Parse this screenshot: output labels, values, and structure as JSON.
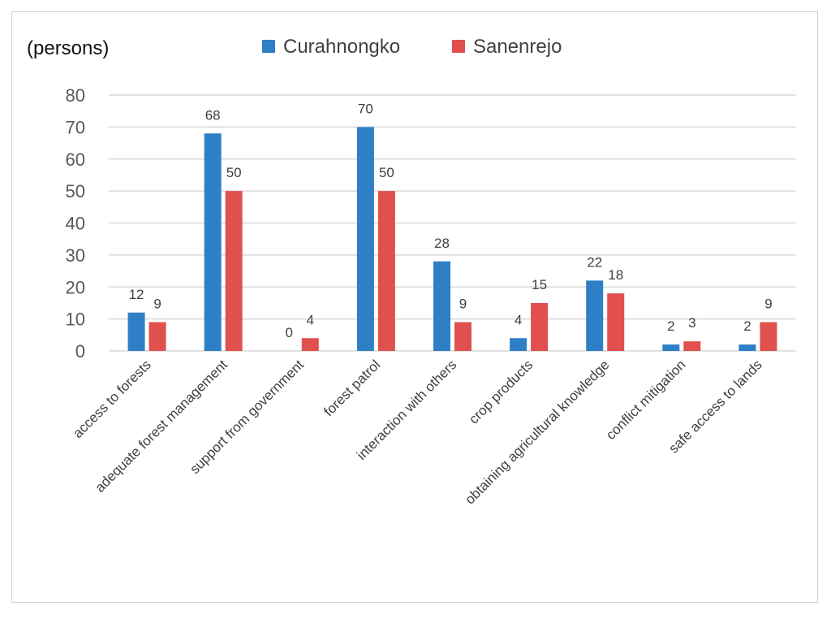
{
  "chart_data": {
    "type": "bar",
    "unit_label": "(persons)",
    "categories": [
      "access to forests",
      "adequate forest management",
      "support from government",
      "forest patrol",
      "interaction with others",
      "crop products",
      "obtaining agricultural knowledge",
      "conflict mitigation",
      "safe access to lands"
    ],
    "series": [
      {
        "name": "Curahnongko",
        "color": "#2e7fc6",
        "values": [
          12,
          68,
          0,
          70,
          28,
          4,
          22,
          2,
          2
        ]
      },
      {
        "name": "Sanenrejo",
        "color": "#e0504e",
        "values": [
          9,
          50,
          4,
          50,
          9,
          15,
          18,
          3,
          9
        ]
      }
    ],
    "ylim": [
      0,
      80
    ],
    "yticks": [
      0,
      10,
      20,
      30,
      40,
      50,
      60,
      70,
      80
    ],
    "grid": true,
    "legend_position": "top-center",
    "title": "",
    "xlabel": "",
    "ylabel": ""
  }
}
